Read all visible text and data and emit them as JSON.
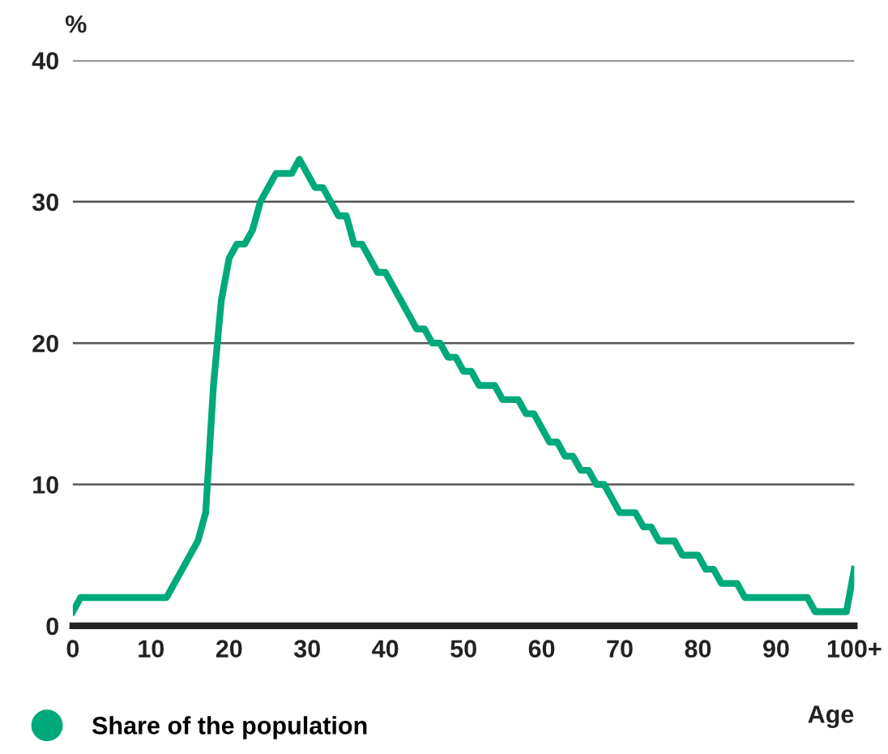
{
  "chart_data": {
    "type": "line",
    "xlabel": "Age",
    "ylabel": "%",
    "x": [
      0,
      1,
      2,
      3,
      4,
      5,
      6,
      7,
      8,
      9,
      10,
      11,
      12,
      13,
      14,
      15,
      16,
      17,
      18,
      19,
      20,
      21,
      22,
      23,
      24,
      25,
      26,
      27,
      28,
      29,
      30,
      31,
      32,
      33,
      34,
      35,
      36,
      37,
      38,
      39,
      40,
      41,
      42,
      43,
      44,
      45,
      46,
      47,
      48,
      49,
      50,
      51,
      52,
      53,
      54,
      55,
      56,
      57,
      58,
      59,
      60,
      61,
      62,
      63,
      64,
      65,
      66,
      67,
      68,
      69,
      70,
      71,
      72,
      73,
      74,
      75,
      76,
      77,
      78,
      79,
      80,
      81,
      82,
      83,
      84,
      85,
      86,
      87,
      88,
      89,
      90,
      91,
      92,
      93,
      94,
      95,
      96,
      97,
      98,
      99,
      100
    ],
    "series": [
      {
        "name": "Share of the population",
        "color": "#00a97a",
        "values": [
          1,
          2,
          2,
          2,
          2,
          2,
          2,
          2,
          2,
          2,
          2,
          2,
          2,
          3,
          4,
          5,
          6,
          8,
          17,
          23,
          26,
          27,
          27,
          28,
          30,
          31,
          32,
          32,
          32,
          33,
          32,
          31,
          31,
          30,
          29,
          29,
          27,
          27,
          26,
          25,
          25,
          24,
          23,
          22,
          21,
          21,
          20,
          20,
          19,
          19,
          18,
          18,
          17,
          17,
          17,
          16,
          16,
          16,
          15,
          15,
          14,
          13,
          13,
          12,
          12,
          11,
          11,
          10,
          10,
          9,
          8,
          8,
          8,
          7,
          7,
          6,
          6,
          6,
          5,
          5,
          5,
          4,
          4,
          3,
          3,
          3,
          2,
          2,
          2,
          2,
          2,
          2,
          2,
          2,
          2,
          1,
          1,
          1,
          1,
          1,
          4
        ]
      }
    ],
    "xlim": [
      0,
      100
    ],
    "xticks": [
      0,
      10,
      20,
      30,
      40,
      50,
      60,
      70,
      80,
      90,
      {
        "value": 100,
        "label": "100+"
      }
    ],
    "ylim": [
      0,
      40
    ],
    "yticks": [
      0,
      10,
      20,
      30,
      40
    ],
    "grid": "y",
    "legend": "bottom left",
    "marker": "none",
    "line_style": "solid"
  }
}
